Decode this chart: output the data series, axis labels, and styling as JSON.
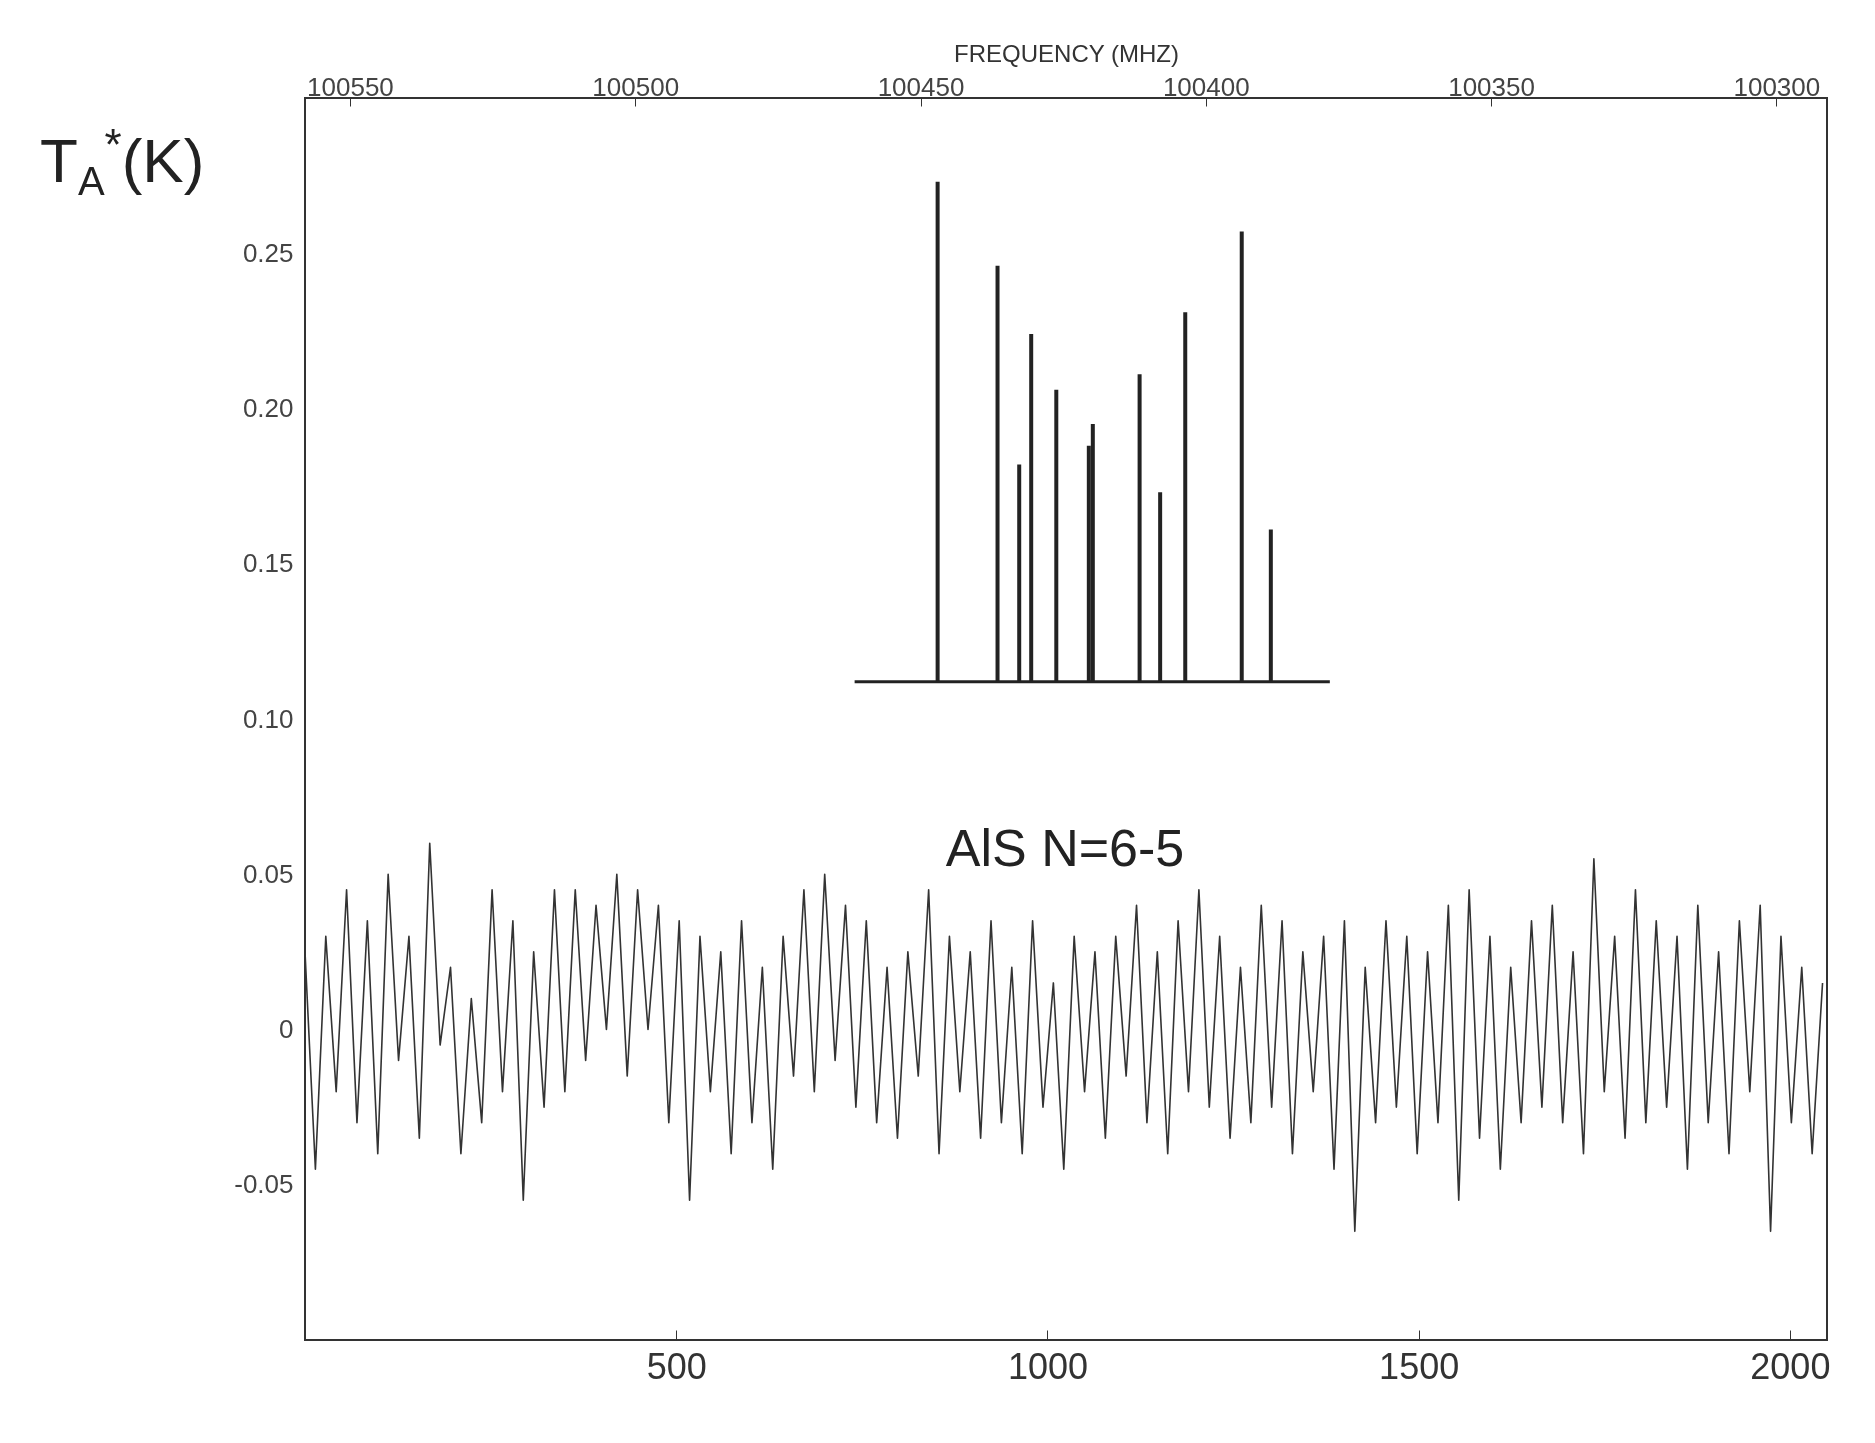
{
  "chart_data": {
    "type": "line",
    "ylabel": "T$_{A}$$^{*}$(K)",
    "x2label": "FREQUENCY (MHZ)",
    "annotations": [
      "AlS N=6-5"
    ],
    "xlim": [
      0,
      2050
    ],
    "xticks": [
      500,
      1000,
      1500,
      2000
    ],
    "x2lim": [
      100557,
      100292
    ],
    "x2ticks": [
      100550,
      100500,
      100450,
      100400,
      100350,
      100300
    ],
    "ylim": [
      -0.1,
      0.3
    ],
    "yticks": [
      {
        "value": -0.05,
        "label": "-0.05"
      },
      0,
      {
        "value": 0.05,
        "label": "0.05"
      },
      {
        "value": 0.1,
        "label": "0.10"
      },
      {
        "value": 0.15,
        "label": "0.15"
      },
      {
        "value": 0.2,
        "label": "0.20"
      },
      {
        "value": 0.25,
        "label": "0.25"
      }
    ],
    "grid": false,
    "ref_lines": [
      {
        "axis": "y",
        "value": 0.112,
        "color": "#222222"
      }
    ],
    "series": [
      {
        "color": "#333333",
        "x": [
          0,
          14,
          28,
          42,
          56,
          70,
          84,
          98,
          112,
          126,
          140,
          154,
          168,
          182,
          196,
          210,
          224,
          238,
          252,
          266,
          280,
          294,
          308,
          322,
          336,
          350,
          364,
          378,
          392,
          406,
          420,
          434,
          448,
          462,
          476,
          490,
          504,
          518,
          532,
          546,
          560,
          574,
          588,
          602,
          616,
          630,
          644,
          658,
          672,
          686,
          700,
          714,
          728,
          742,
          756,
          770,
          784,
          798,
          812,
          826,
          840,
          854,
          868,
          882,
          896,
          910,
          924,
          938,
          952,
          966,
          980,
          994,
          1008,
          1022,
          1036,
          1050,
          1064,
          1078,
          1092,
          1106,
          1120,
          1134,
          1148,
          1162,
          1176,
          1190,
          1204,
          1218,
          1232,
          1246,
          1260,
          1274,
          1288,
          1302,
          1316,
          1330,
          1344,
          1358,
          1372,
          1386,
          1400,
          1414,
          1428,
          1442,
          1456,
          1470,
          1484,
          1498,
          1512,
          1526,
          1540,
          1554,
          1568,
          1582,
          1596,
          1610,
          1624,
          1638,
          1652,
          1666,
          1680,
          1694,
          1708,
          1722,
          1736,
          1750,
          1764,
          1778,
          1792,
          1806,
          1820,
          1834,
          1848,
          1862,
          1876,
          1890,
          1904,
          1918,
          1932,
          1946,
          1960,
          1974,
          1988,
          2002,
          2016,
          2030,
          2044
        ],
        "values": [
          0.025,
          -0.045,
          0.03,
          -0.02,
          0.045,
          -0.03,
          0.035,
          -0.04,
          0.05,
          -0.01,
          0.03,
          -0.035,
          0.06,
          -0.005,
          0.02,
          -0.04,
          0.01,
          -0.03,
          0.045,
          -0.02,
          0.035,
          -0.055,
          0.025,
          -0.025,
          0.045,
          -0.02,
          0.045,
          -0.01,
          0.04,
          0.0,
          0.05,
          -0.015,
          0.045,
          0.0,
          0.04,
          -0.03,
          0.035,
          -0.055,
          0.03,
          -0.02,
          0.025,
          -0.04,
          0.035,
          -0.03,
          0.02,
          -0.045,
          0.03,
          -0.015,
          0.045,
          -0.02,
          0.05,
          -0.01,
          0.04,
          -0.025,
          0.035,
          -0.03,
          0.02,
          -0.035,
          0.025,
          -0.015,
          0.045,
          -0.04,
          0.03,
          -0.02,
          0.025,
          -0.035,
          0.035,
          -0.03,
          0.02,
          -0.04,
          0.035,
          -0.025,
          0.015,
          -0.045,
          0.03,
          -0.02,
          0.025,
          -0.035,
          0.03,
          -0.015,
          0.04,
          -0.03,
          0.025,
          -0.04,
          0.035,
          -0.02,
          0.045,
          -0.025,
          0.03,
          -0.035,
          0.02,
          -0.03,
          0.04,
          -0.025,
          0.035,
          -0.04,
          0.025,
          -0.02,
          0.03,
          -0.045,
          0.035,
          -0.065,
          0.02,
          -0.03,
          0.035,
          -0.025,
          0.03,
          -0.04,
          0.025,
          -0.03,
          0.04,
          -0.055,
          0.045,
          -0.035,
          0.03,
          -0.045,
          0.02,
          -0.03,
          0.035,
          -0.025,
          0.04,
          -0.03,
          0.025,
          -0.04,
          0.055,
          -0.02,
          0.03,
          -0.035,
          0.045,
          -0.03,
          0.035,
          -0.025,
          0.03,
          -0.045,
          0.04,
          -0.03,
          0.025,
          -0.04,
          0.035,
          -0.02,
          0.04,
          -0.065,
          0.03,
          -0.03,
          0.02,
          -0.04,
          0.015
        ]
      },
      {
        "type": "bar",
        "axis": "x2",
        "color": "#222222",
        "x": [
          100447,
          100436.5,
          100432.7,
          100430.6,
          100426.2,
          100420.5,
          100419.8,
          100411.6,
          100408,
          100403.6,
          100393.7,
          100388.6
        ],
        "base": [
          0.112,
          0.112,
          0.112,
          0.112,
          0.112,
          0.112,
          0.112,
          0.112,
          0.112,
          0.112,
          0.112,
          0.112
        ],
        "values": [
          0.161,
          0.134,
          0.07,
          0.112,
          0.094,
          0.076,
          0.083,
          0.099,
          0.061,
          0.119,
          0.145,
          0.049
        ]
      }
    ]
  }
}
